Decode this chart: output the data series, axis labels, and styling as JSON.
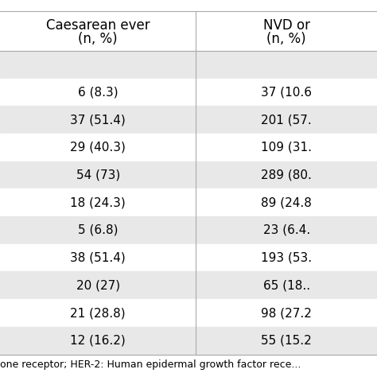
{
  "col1_header": [
    "Caesarean ever",
    "(n, %)"
  ],
  "col2_header": [
    "NVD or",
    "(n, %)"
  ],
  "rows": [
    {
      "col1": "",
      "col2": "",
      "shaded": true
    },
    {
      "col1": "6 (8.3)",
      "col2": "37 (10.6",
      "shaded": false
    },
    {
      "col1": "37 (51.4)",
      "col2": "201 (57.",
      "shaded": true
    },
    {
      "col1": "29 (40.3)",
      "col2": "109 (31.",
      "shaded": false
    },
    {
      "col1": "54 (73)",
      "col2": "289 (80.",
      "shaded": true
    },
    {
      "col1": "18 (24.3)",
      "col2": "89 (24.8",
      "shaded": false
    },
    {
      "col1": "5 (6.8)",
      "col2": "23 (6.4.",
      "shaded": true
    },
    {
      "col1": "38 (51.4)",
      "col2": "193 (53.",
      "shaded": false
    },
    {
      "col1": "20 (27)",
      "col2": "65 (18..",
      "shaded": true
    },
    {
      "col1": "21 (28.8)",
      "col2": "98 (27.2",
      "shaded": false
    },
    {
      "col1": "12 (16.2)",
      "col2": "55 (15.2",
      "shaded": true
    }
  ],
  "footer": "one receptor; HER-2: Human epidermal growth factor rece...",
  "bg_color": "#ffffff",
  "shaded_color": "#e8e8e8",
  "text_color": "#000000",
  "divider_color": "#aaaaaa",
  "font_size": 11,
  "header_font_size": 12,
  "footer_font_size": 9
}
